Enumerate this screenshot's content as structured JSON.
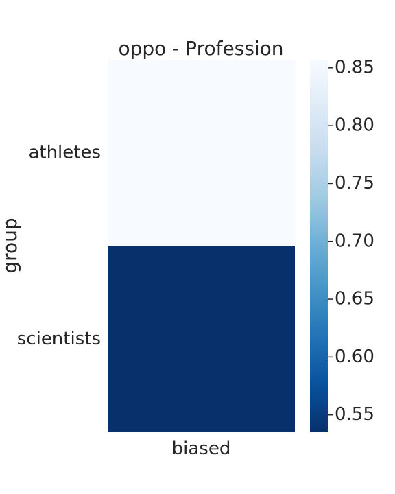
{
  "chart_data": {
    "type": "heatmap",
    "title": "oppo - Profession",
    "xlabel": "",
    "ylabel": "group",
    "columns": [
      "biased"
    ],
    "rows": [
      "athletes",
      "scientists"
    ],
    "values": [
      [
        0.857
      ],
      [
        0.535
      ]
    ],
    "colorbar": {
      "min": 0.535,
      "max": 0.857,
      "ticks": [
        0.55,
        0.6,
        0.65,
        0.7,
        0.75,
        0.8,
        0.85
      ],
      "tick_labels": [
        "0.55",
        "0.60",
        "0.65",
        "0.70",
        "0.75",
        "0.80",
        "0.85"
      ],
      "colormap": "Blues_r"
    },
    "grid": false,
    "legend": "colorbar-right"
  }
}
